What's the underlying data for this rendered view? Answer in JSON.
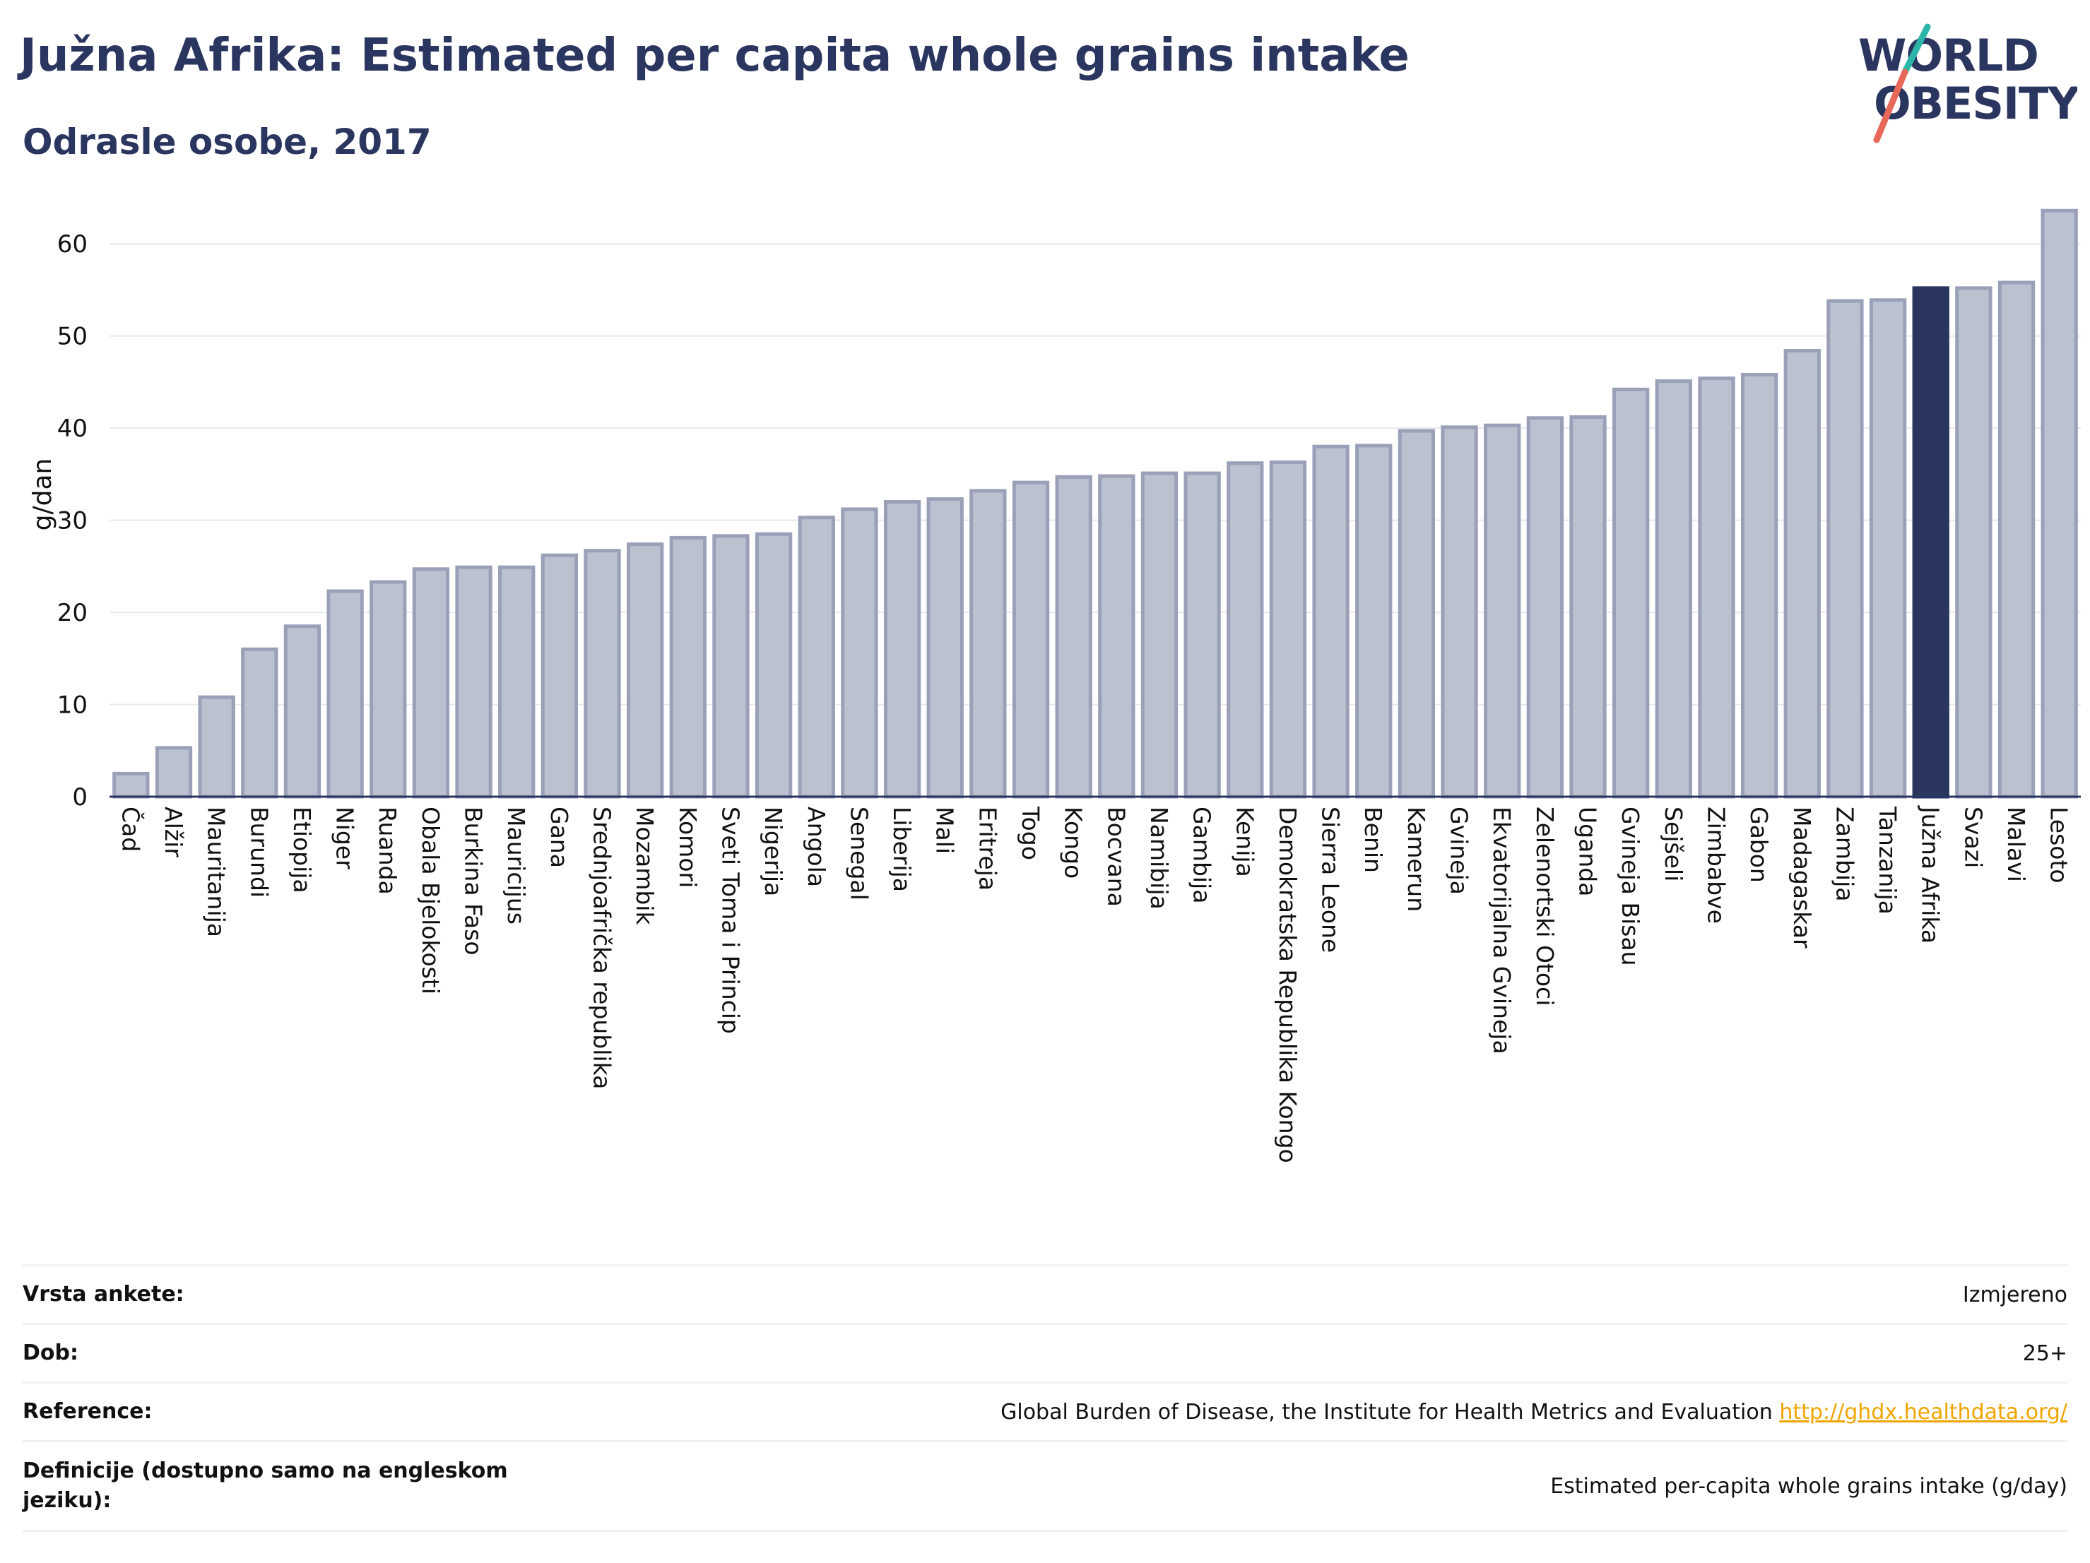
{
  "title": "Južna Afrika: Estimated per capita whole grains intake",
  "subtitle": "Odrasle osobe, 2017",
  "logo": {
    "line1": "WORLD",
    "line2": "OBESITY",
    "accent_teal": "#2bb5a8",
    "accent_red": "#e8685a"
  },
  "colors": {
    "bar": "#bcc1d0",
    "bar_border": "#9aa0b8",
    "highlight": "#2a3560",
    "grid": "#e6e8ef",
    "axis": "#2a3560"
  },
  "chart_data": {
    "type": "bar",
    "ylabel": "g/dan",
    "ylim": [
      0,
      65
    ],
    "yticks": [
      0,
      10,
      20,
      30,
      40,
      50,
      60
    ],
    "highlight": "Južna Afrika",
    "categories": [
      "Čad",
      "Alžir",
      "Mauritanija",
      "Burundi",
      "Etiopija",
      "Niger",
      "Ruanda",
      "Obala Bjelokosti",
      "Burkina Faso",
      "Mauricijus",
      "Gana",
      "Srednjoafrička republika",
      "Mozambik",
      "Komori",
      "Sveti Toma i Princip",
      "Nigerija",
      "Angola",
      "Senegal",
      "Liberija",
      "Mali",
      "Eritreja",
      "Togo",
      "Kongo",
      "Bocvana",
      "Namibija",
      "Gambija",
      "Kenija",
      "Demokratska Republika Kongo",
      "Sierra Leone",
      "Benin",
      "Kamerun",
      "Gvineja",
      "Ekvatorijalna Gvineja",
      "Zelenortski Otoci",
      "Uganda",
      "Gvineja Bisau",
      "Sejšeli",
      "Zimbabve",
      "Gabon",
      "Madagaskar",
      "Zambija",
      "Tanzanija",
      "Južna Afrika",
      "Svazi",
      "Malavi",
      "Lesoto"
    ],
    "values": [
      2.5,
      5.3,
      10.8,
      16.0,
      18.5,
      22.3,
      23.3,
      24.7,
      24.9,
      24.9,
      26.2,
      26.7,
      27.4,
      28.1,
      28.3,
      28.5,
      30.3,
      31.2,
      32.0,
      32.3,
      33.2,
      34.1,
      34.7,
      34.8,
      35.1,
      35.1,
      36.2,
      36.3,
      38.0,
      38.1,
      39.7,
      40.1,
      40.3,
      41.1,
      41.2,
      44.2,
      45.1,
      45.4,
      45.8,
      48.4,
      53.8,
      53.9,
      55.2,
      55.2,
      55.8,
      63.6
    ]
  },
  "info": [
    {
      "key": "Vrsta ankete:",
      "value": "Izmjereno"
    },
    {
      "key": "Dob:",
      "value": "25+"
    },
    {
      "key": "Reference:",
      "value": "Global Burden of Disease, the Institute for Health Metrics and Evaluation",
      "link": "http://ghdx.healthdata.org/"
    },
    {
      "key": "Definicije (dostupno samo na engleskom jeziku):",
      "value": "Estimated per-capita whole grains intake (g/day)"
    }
  ]
}
